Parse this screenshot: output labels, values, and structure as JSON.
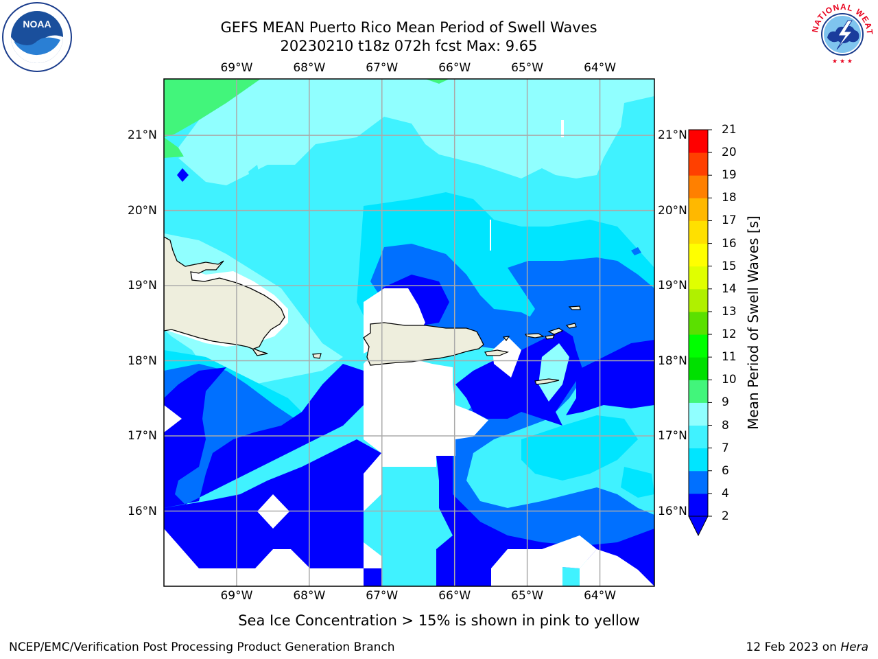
{
  "title": {
    "line1": "GEFS MEAN Puerto Rico Mean Period of Swell Waves",
    "line2": "20230210 t18z 072h fcst   Max: 9.65"
  },
  "logos": {
    "left": "noaa-logo",
    "right": "nws-logo",
    "noaa_text": "NOAA",
    "nws_text": "NATIONAL WEATHER SERVICE"
  },
  "map": {
    "lon_ticks": [
      "69°W",
      "68°W",
      "67°W",
      "66°W",
      "65°W",
      "64°W"
    ],
    "lat_ticks": [
      "21°N",
      "20°N",
      "19°N",
      "18°N",
      "17°N",
      "16°N"
    ],
    "extent": {
      "lon_min": -70.0,
      "lon_max": -63.25,
      "lat_min": 15.0,
      "lat_max": 21.75
    },
    "grid": true,
    "land_color": "#eeeedd",
    "coastline_color": "#000000"
  },
  "colorbar": {
    "title": "Mean Period of Swell Waves [s]",
    "levels": [
      "2",
      "4",
      "6",
      "7",
      "8",
      "9",
      "10",
      "11",
      "12",
      "13",
      "14",
      "15",
      "16",
      "17",
      "18",
      "19",
      "20",
      "21"
    ],
    "colors": [
      "#0000ff",
      "#0070ff",
      "#00e5ff",
      "#40f2ff",
      "#90ffff",
      "#42f57b",
      "#00e000",
      "#00ff00",
      "#5be000",
      "#b0f000",
      "#e0ff00",
      "#ffff00",
      "#ffe000",
      "#ffb800",
      "#ff8000",
      "#ff4000",
      "#ff0000"
    ],
    "extend": "min",
    "under_color": "#0000ff"
  },
  "footnote": "Sea Ice Concentration > 15% is shown in pink to yellow",
  "credit": {
    "left": "NCEP/EMC/Verification Post Processing Product Generation Branch",
    "right_date": "12 Feb 2023 on ",
    "right_host": "Hera"
  }
}
